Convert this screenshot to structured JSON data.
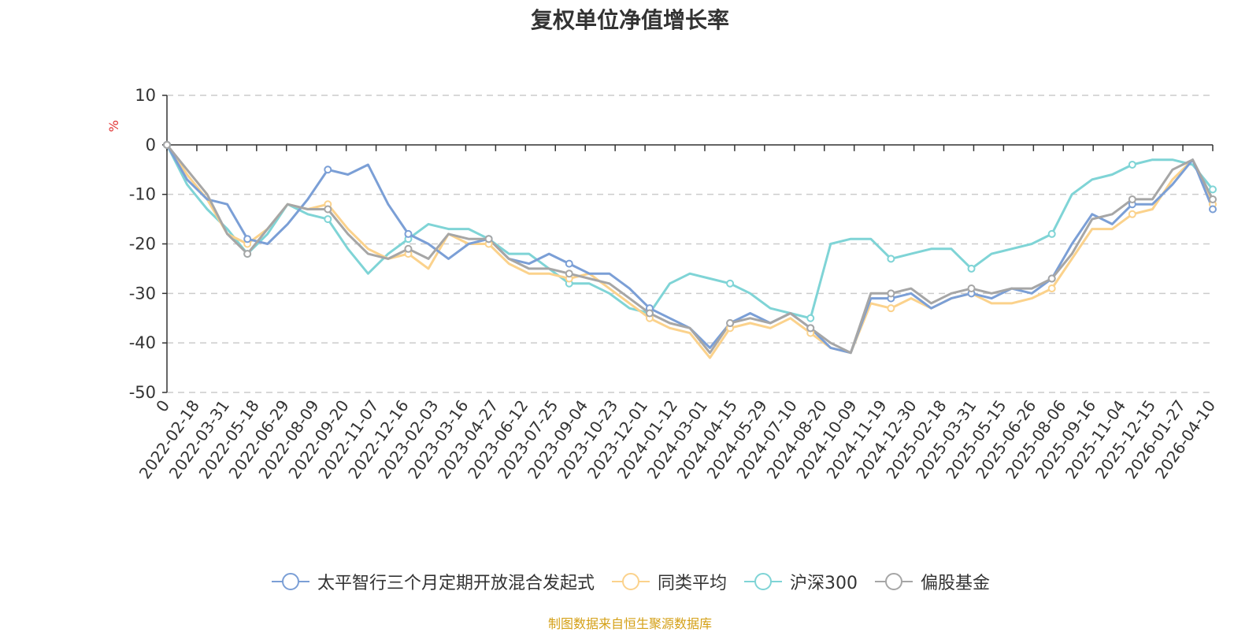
{
  "chart_data": {
    "type": "line",
    "title": "复权单位净值增长率",
    "ylabel": "%",
    "xlabel": "",
    "ylim": [
      -50,
      10
    ],
    "yticks": [
      10,
      0,
      -10,
      -20,
      -30,
      -40,
      -50
    ],
    "grid": true,
    "legend_position": "bottom",
    "x_tick_labels": [
      "0",
      "2022-02-18",
      "2022-03-31",
      "2022-05-18",
      "2022-06-29",
      "2022-08-09",
      "2022-09-20",
      "2022-11-07",
      "2022-12-16",
      "2023-02-03",
      "2023-03-16",
      "2023-04-27",
      "2023-06-12",
      "2023-07-25",
      "2023-09-04",
      "2023-10-23",
      "2023-12-01",
      "2024-01-12",
      "2024-03-01",
      "2024-04-15",
      "2024-05-29",
      "2024-07-10",
      "2024-08-20",
      "2024-10-09",
      "2024-11-19",
      "2024-12-30",
      "2025-02-18",
      "2025-03-31",
      "2025-05-15",
      "2025-06-26",
      "2025-08-06",
      "2025-09-16",
      "2025-11-04",
      "2025-12-15",
      "2026-01-27",
      "2026-04-10"
    ],
    "series": [
      {
        "name": "太平智行三个月定期开放混合发起式",
        "color": "#7b9fd6",
        "values": [
          0,
          -7,
          -11,
          -12,
          -19,
          -20,
          -16,
          -11,
          -5,
          -6,
          -4,
          -12,
          -18,
          -20,
          -23,
          -20,
          -19,
          -23,
          -24,
          -22,
          -24,
          -26,
          -26,
          -29,
          -33,
          -35,
          -37,
          -41,
          -36,
          -34,
          -36,
          -34,
          -37,
          -41,
          -42,
          -31,
          -31,
          -30,
          -33,
          -31,
          -30,
          -31,
          -29,
          -30,
          -27,
          -20,
          -14,
          -16,
          -12,
          -12,
          -8,
          -3,
          -13
        ]
      },
      {
        "name": "同类平均",
        "color": "#fbd28c",
        "values": [
          0,
          -6,
          -11,
          -18,
          -20,
          -17,
          -12,
          -13,
          -12,
          -17,
          -21,
          -23,
          -22,
          -25,
          -18,
          -20,
          -20,
          -24,
          -26,
          -26,
          -27,
          -26,
          -29,
          -32,
          -35,
          -37,
          -38,
          -43,
          -37,
          -36,
          -37,
          -35,
          -38,
          -41,
          -42,
          -32,
          -33,
          -31,
          -33,
          -31,
          -30,
          -32,
          -32,
          -31,
          -29,
          -23,
          -17,
          -17,
          -14,
          -13,
          -7,
          -3,
          -12
        ]
      },
      {
        "name": "沪深300",
        "color": "#7fd4d6",
        "values": [
          0,
          -8,
          -13,
          -17,
          -22,
          -18,
          -12,
          -14,
          -15,
          -21,
          -26,
          -22,
          -19,
          -16,
          -17,
          -17,
          -19,
          -22,
          -22,
          -25,
          -28,
          -28,
          -30,
          -33,
          -34,
          -28,
          -26,
          -27,
          -28,
          -30,
          -33,
          -34,
          -35,
          -20,
          -19,
          -19,
          -23,
          -22,
          -21,
          -21,
          -25,
          -22,
          -21,
          -20,
          -18,
          -10,
          -7,
          -6,
          -4,
          -3,
          -3,
          -4,
          -9
        ]
      },
      {
        "name": "偏股基金",
        "color": "#a6a6a6",
        "values": [
          0,
          -5,
          -10,
          -18,
          -22,
          -17,
          -12,
          -13,
          -13,
          -18,
          -22,
          -23,
          -21,
          -23,
          -18,
          -19,
          -19,
          -23,
          -25,
          -25,
          -26,
          -27,
          -28,
          -31,
          -34,
          -36,
          -37,
          -42,
          -36,
          -35,
          -36,
          -34,
          -37,
          -40,
          -42,
          -30,
          -30,
          -29,
          -32,
          -30,
          -29,
          -30,
          -29,
          -29,
          -27,
          -22,
          -15,
          -14,
          -11,
          -11,
          -5,
          -3,
          -11
        ]
      }
    ],
    "source_text": "制图数据来自恒生聚源数据库",
    "source_color": "#d4a017"
  }
}
